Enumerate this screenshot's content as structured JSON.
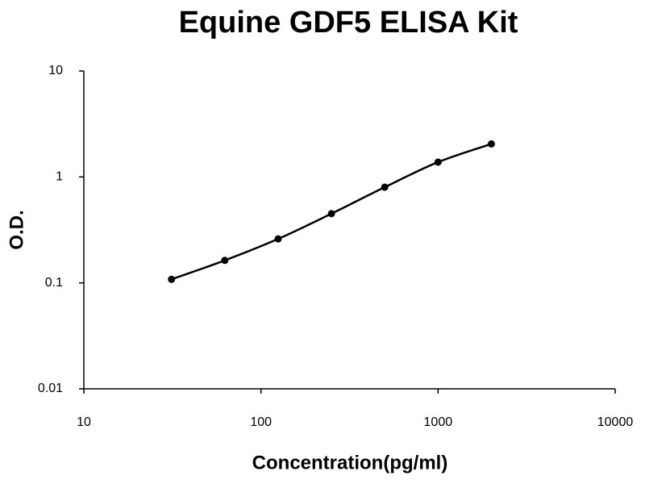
{
  "chart_data": {
    "type": "line",
    "title": "Equine GDF5 ELISA Kit",
    "x_label": "Concentration(pg/ml)",
    "y_label": "O.D.",
    "x": [
      31.25,
      62.5,
      125,
      250,
      500,
      1000,
      2000
    ],
    "values": [
      0.108,
      0.163,
      0.26,
      0.45,
      0.8,
      1.38,
      2.05
    ],
    "color": "#000000",
    "xscale": "log",
    "yscale": "log",
    "xlim": [
      10,
      10000
    ],
    "xticks": [
      10,
      100,
      1000,
      10000
    ],
    "ylim": [
      0.01,
      10
    ],
    "yticks": [
      0.01,
      0.1,
      1,
      10
    ],
    "grid": false
  }
}
